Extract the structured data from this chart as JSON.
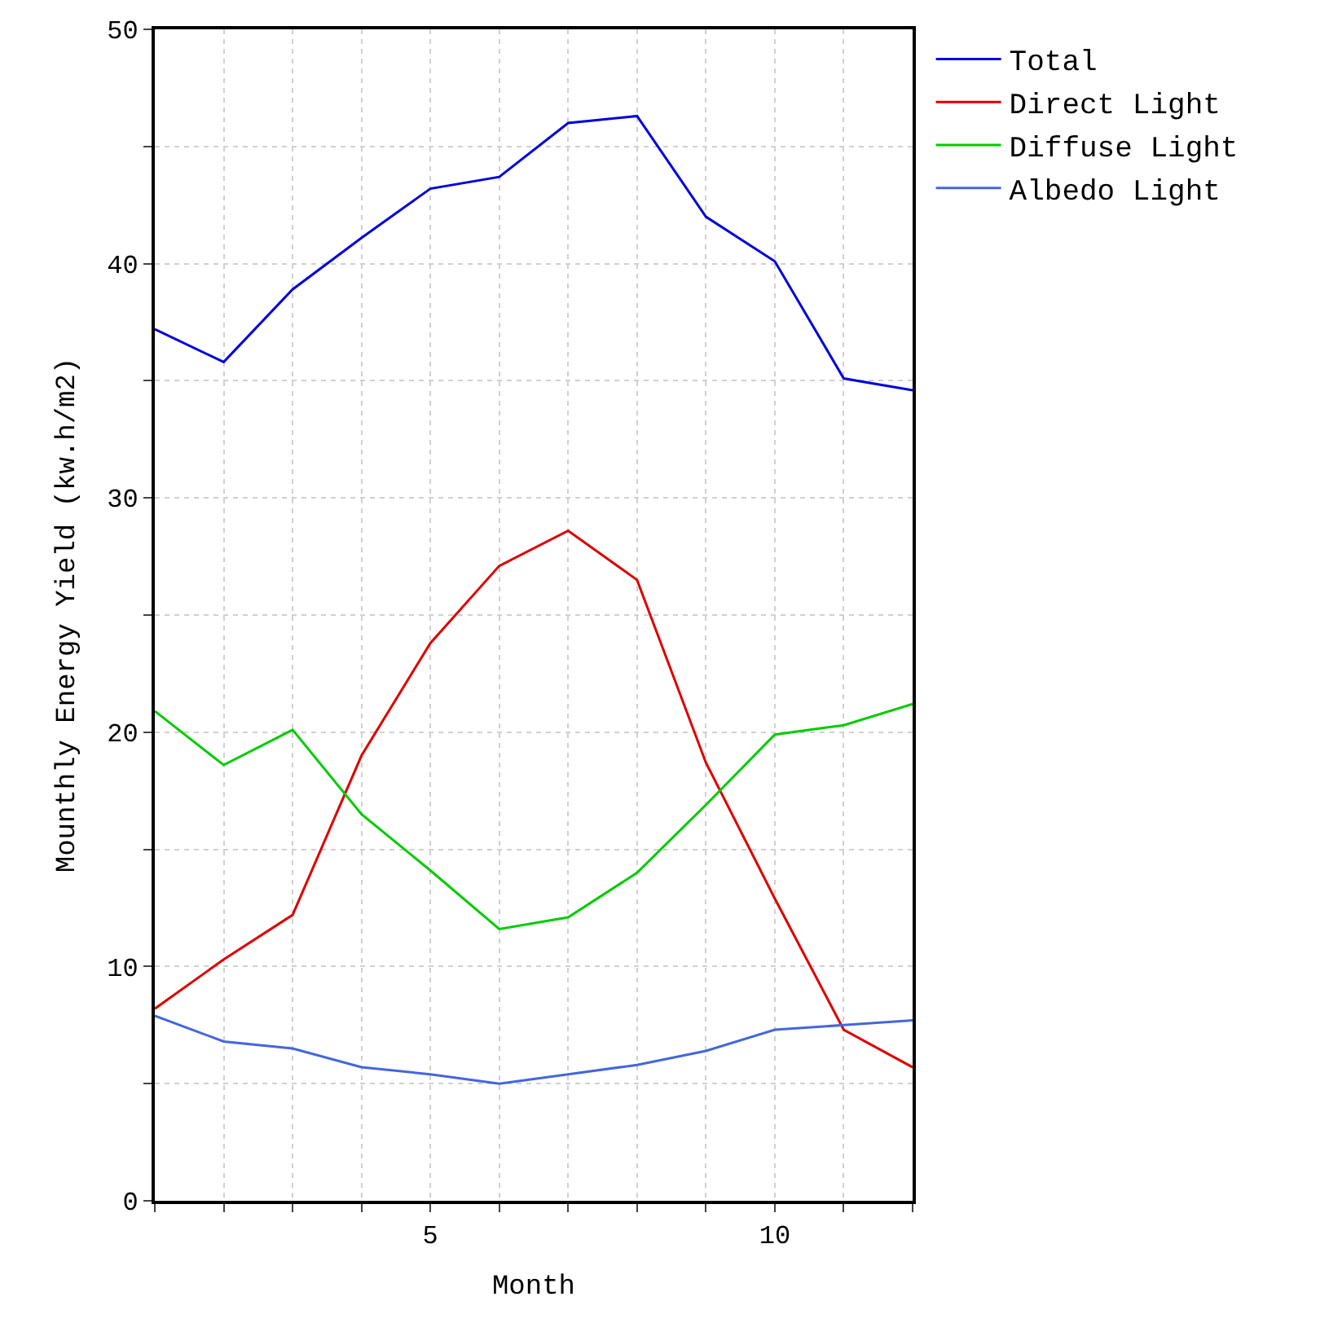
{
  "chart_data": {
    "type": "line",
    "xlabel": "Month",
    "ylabel": "Mounthly Energy Yield (kw.h/m2)",
    "x": [
      1,
      2,
      3,
      4,
      5,
      6,
      7,
      8,
      9,
      10,
      11,
      12
    ],
    "series": [
      {
        "name": "Total",
        "color": "#0000dd",
        "values": [
          37.2,
          35.8,
          38.9,
          41.1,
          43.2,
          43.7,
          46.0,
          46.3,
          42.0,
          40.1,
          35.1,
          34.6
        ]
      },
      {
        "name": "Direct Light",
        "color": "#dd0000",
        "values": [
          8.2,
          10.3,
          12.2,
          19.0,
          23.8,
          27.1,
          28.6,
          26.5,
          18.7,
          12.9,
          7.3,
          5.7
        ]
      },
      {
        "name": "Diffuse Light",
        "color": "#00cc00",
        "values": [
          20.9,
          18.6,
          20.1,
          16.5,
          14.1,
          11.6,
          12.1,
          14.0,
          16.9,
          19.9,
          20.3,
          21.2
        ]
      },
      {
        "name": "Albedo Light",
        "color": "#4466dd",
        "values": [
          7.9,
          6.8,
          6.5,
          5.7,
          5.4,
          5.0,
          5.4,
          5.8,
          6.4,
          7.3,
          7.5,
          7.7
        ]
      }
    ],
    "xlim": [
      1,
      12
    ],
    "xticks": [
      {
        "value": 1,
        "label": null
      },
      {
        "value": 2,
        "label": null
      },
      {
        "value": 3,
        "label": null
      },
      {
        "value": 4,
        "label": null
      },
      5,
      {
        "value": 6,
        "label": null
      },
      {
        "value": 7,
        "label": null
      },
      {
        "value": 8,
        "label": null
      },
      {
        "value": 9,
        "label": null
      },
      10,
      {
        "value": 11,
        "label": null
      },
      {
        "value": 12,
        "label": null
      }
    ],
    "ylim": [
      0,
      50
    ],
    "yticks": [
      0,
      {
        "value": 5,
        "label": null
      },
      10,
      {
        "value": 15,
        "label": null
      },
      20,
      {
        "value": 25,
        "label": null
      },
      30,
      {
        "value": 35,
        "label": null
      },
      40,
      {
        "value": 45,
        "label": null
      },
      50
    ],
    "grid": true,
    "legend": "top right",
    "marker": "none",
    "line_style": "solid"
  }
}
